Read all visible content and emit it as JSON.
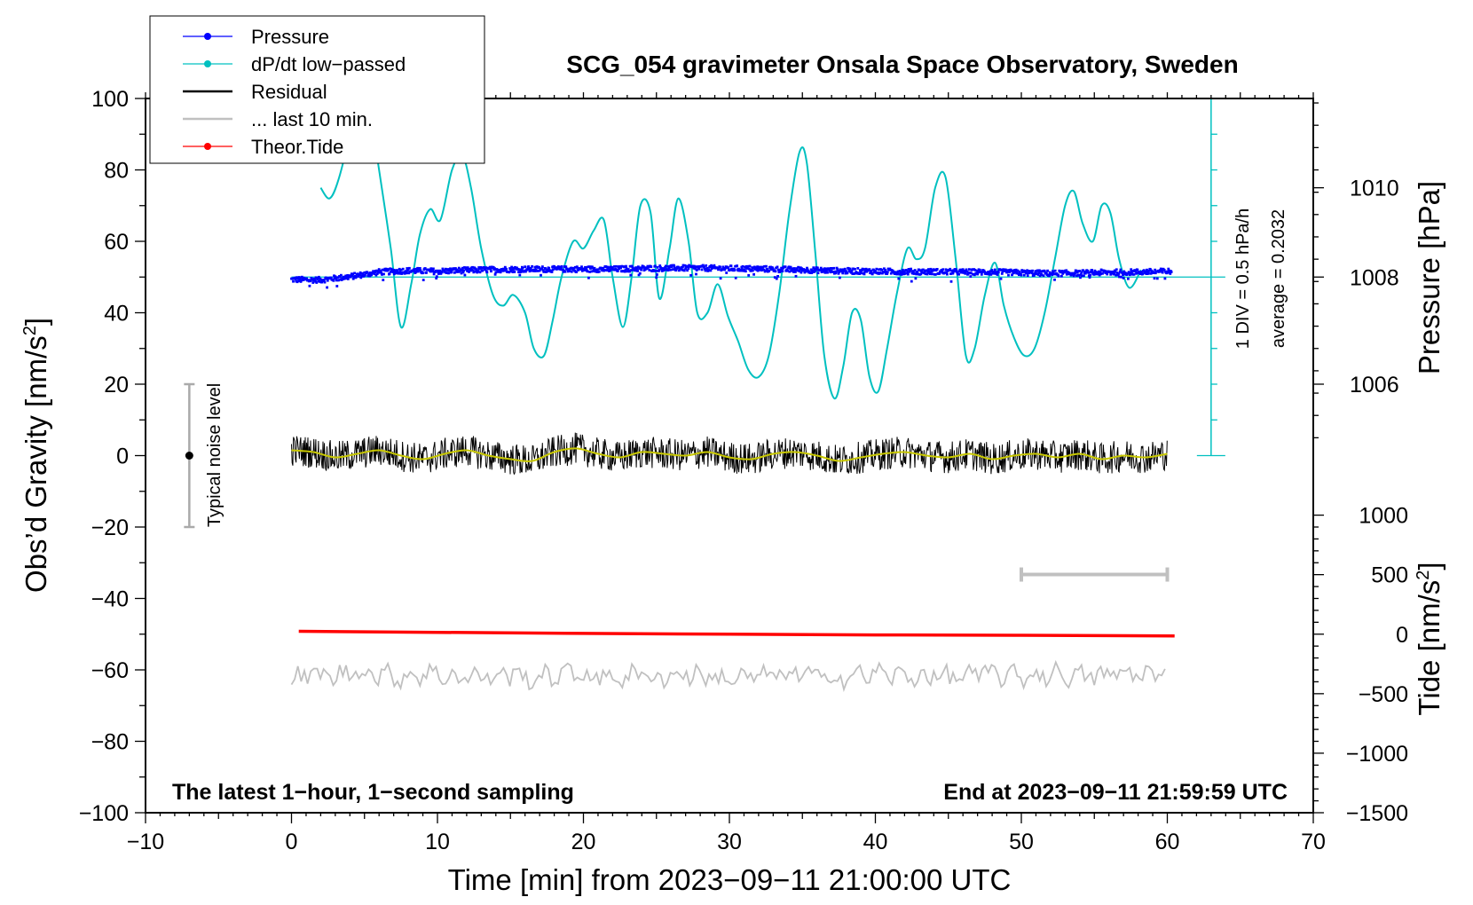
{
  "chart_data": {
    "type": "line",
    "title": "SCG_054 gravimeter Onsala Space Observatory, Sweden",
    "xlabel": "Time [min] from 2023−09−11 21:00:00 UTC",
    "ylabel_left": "Obs’d Gravity [nm/s",
    "ylabel_right_top": "Pressure [hPa]",
    "ylabel_right_bottom": "Tide [nm/s",
    "unit_sup": "2",
    "unit_close": "]",
    "xlim": [
      -10,
      70
    ],
    "ylim": [
      -100,
      100
    ],
    "x_ticks": [
      -10,
      0,
      10,
      20,
      30,
      40,
      50,
      60,
      70
    ],
    "x_tick_labels": [
      "−10",
      "0",
      "10",
      "20",
      "30",
      "40",
      "50",
      "60",
      "70"
    ],
    "y_ticks": [
      -100,
      -80,
      -60,
      -40,
      -20,
      0,
      20,
      40,
      60,
      80,
      100
    ],
    "y_tick_labels": [
      "−100",
      "−80",
      "−60",
      "−40",
      "−20",
      "0",
      "20",
      "40",
      "60",
      "80",
      "100"
    ],
    "pressure_axis": {
      "ticks": [
        1006,
        1008,
        1010
      ],
      "tick_labels": [
        "1006",
        "1008",
        "1010"
      ],
      "gravity_equiv": [
        20,
        50,
        75
      ]
    },
    "tide_axis": {
      "ticks": [
        -1500,
        -1000,
        -500,
        0,
        500,
        1000
      ],
      "tick_labels": [
        "−1500",
        "−1000",
        "−500",
        "0",
        "500",
        "1000"
      ],
      "gravity_equiv": [
        -100,
        -83.33,
        -66.67,
        -50,
        -33.33,
        -16.67
      ]
    },
    "legend": [
      {
        "label": "Pressure",
        "color": "#0000ff",
        "marker": true
      },
      {
        "label": "dP/dt low−passed",
        "color": "#00c0c0",
        "marker": true
      },
      {
        "label": "Residual",
        "color": "#000000",
        "marker": false
      },
      {
        "label": "... last 10 min.",
        "color": "#c0c0c0",
        "marker": false
      },
      {
        "label": "Theor.Tide",
        "color": "#ff0000",
        "marker": true
      }
    ],
    "series": [
      {
        "name": "dP/dt low-passed",
        "color": "#00c0c0",
        "x": [
          2,
          2.6,
          3.2,
          4,
          4.6,
          5.3,
          6,
          6.8,
          7.5,
          8.2,
          8.8,
          9.5,
          10.2,
          11,
          11.7,
          12.3,
          13,
          13.8,
          14.5,
          15.2,
          16,
          16.6,
          17.3,
          17.9,
          18.5,
          19.3,
          20,
          20.7,
          21.4,
          22,
          22.7,
          23.3,
          23.9,
          24.6,
          25.2,
          25.9,
          26.5,
          27.2,
          27.8,
          28.5,
          29.2,
          29.9,
          30.6,
          31.3,
          32,
          32.7,
          33.4,
          34.1,
          34.8,
          35.3,
          35.9,
          36.5,
          37.2,
          37.8,
          38.4,
          39,
          39.6,
          40.2,
          40.8,
          41.5,
          42.2,
          42.8,
          43.4,
          44.1,
          44.8,
          45.5,
          46.2,
          46.8,
          47.5,
          48.2,
          48.8,
          49.5,
          50.2,
          50.9,
          51.6,
          52.3,
          53,
          53.6,
          54.2,
          54.9,
          55.5,
          56.1,
          56.7,
          57.4,
          58.2
        ],
        "y": [
          75,
          72,
          77,
          90,
          102,
          98,
          80,
          58,
          36,
          48,
          62,
          69,
          66,
          80,
          84,
          75,
          58,
          45,
          42,
          45,
          40,
          30,
          28,
          38,
          50,
          60,
          58,
          63,
          66,
          50,
          36,
          50,
          70,
          68,
          44,
          58,
          72,
          60,
          40,
          40,
          48,
          39,
          32,
          24,
          22,
          28,
          45,
          68,
          85,
          82,
          56,
          28,
          16,
          25,
          40,
          38,
          22,
          18,
          30,
          46,
          58,
          55,
          58,
          75,
          78,
          55,
          28,
          30,
          45,
          54,
          42,
          33,
          28,
          30,
          40,
          55,
          70,
          74,
          65,
          60,
          70,
          68,
          55,
          47,
          52
        ]
      },
      {
        "name": "Pressure",
        "color": "#0000ff",
        "x": [
          0,
          2,
          4,
          6,
          8,
          10,
          12,
          14,
          16,
          18,
          20,
          22,
          24,
          26,
          28,
          30,
          32,
          34,
          36,
          38,
          40,
          42,
          44,
          46,
          48,
          50,
          52,
          54,
          56,
          58,
          60.3
        ],
        "y": [
          49.3,
          49.2,
          50.1,
          51.4,
          51.8,
          51.6,
          51.9,
          52.1,
          52.2,
          52.2,
          52.2,
          52.2,
          52.4,
          52.5,
          52.5,
          52.4,
          52.3,
          52.1,
          51.9,
          51.7,
          51.6,
          51.5,
          51.5,
          51.4,
          51.4,
          51.2,
          51,
          51.1,
          51.3,
          51.4,
          51.6
        ]
      },
      {
        "name": "Residual",
        "color": "#000000",
        "x": [
          0,
          1.5,
          3,
          4.5,
          6,
          7.5,
          9,
          10.5,
          12,
          13.5,
          15,
          16.5,
          18,
          19.5,
          21,
          22.5,
          24,
          25.5,
          27,
          28.5,
          30,
          31.5,
          33,
          34.5,
          36,
          37.5,
          39,
          40.5,
          42,
          43.5,
          45,
          46.5,
          48,
          49.5,
          51,
          52.5,
          54,
          55.5,
          57,
          58.5,
          60
        ],
        "y": [
          1.5,
          1,
          -0.5,
          0.5,
          1.5,
          0,
          -1,
          0.5,
          1.5,
          0,
          -1,
          -1.5,
          1,
          2,
          0.5,
          -0.5,
          1,
          0.5,
          0,
          1,
          -0.5,
          -1,
          0.5,
          1,
          0,
          -1.5,
          -0.5,
          0.5,
          1,
          0,
          -0.5,
          0.5,
          -1,
          0,
          0.5,
          -0.5,
          0.5,
          -1,
          0,
          -0.5,
          0.5
        ]
      },
      {
        "name": "Residual (smoothed)",
        "color": "#c8c800",
        "x": [
          0,
          1.5,
          3,
          4.5,
          6,
          7.5,
          9,
          10.5,
          12,
          13.5,
          15,
          16.5,
          18,
          19.5,
          21,
          22.5,
          24,
          25.5,
          27,
          28.5,
          30,
          31.5,
          33,
          34.5,
          36,
          37.5,
          39,
          40.5,
          42,
          43.5,
          45,
          46.5,
          48,
          49.5,
          51,
          52.5,
          54,
          55.5,
          57,
          58.5,
          60
        ],
        "y": [
          1.5,
          1,
          -0.5,
          0.5,
          1.5,
          0,
          -1,
          0.5,
          1.5,
          0,
          -1,
          -1.5,
          1,
          2,
          0.5,
          -0.5,
          1,
          0.5,
          0,
          1,
          -0.5,
          -1,
          0.5,
          1,
          0,
          -1.5,
          -0.5,
          0.5,
          1,
          0,
          -0.5,
          0.5,
          -1,
          0,
          0.5,
          -0.5,
          0.5,
          -1,
          0,
          -0.5,
          0.5
        ]
      },
      {
        "name": "... last 10 min.",
        "color": "#c0c0c0",
        "x": [
          0,
          1.5,
          3,
          4.5,
          6,
          7.5,
          9,
          10.5,
          12,
          13.5,
          15,
          16.5,
          18,
          19.5,
          21,
          22.5,
          24,
          25.5,
          27,
          28.5,
          30,
          31.5,
          33,
          34.5,
          36,
          37.5,
          39,
          40.5,
          42,
          43.5,
          45,
          46.5,
          48,
          49.5,
          51,
          52.5,
          54,
          55.5,
          57,
          58.5,
          60
        ],
        "y": [
          -63,
          -61,
          -62,
          -60,
          -61.5,
          -62,
          -61,
          -61.5,
          -62,
          -62,
          -61,
          -62.5,
          -61.5,
          -61,
          -62,
          -62,
          -61.5,
          -62,
          -61,
          -62,
          -62.5,
          -62,
          -61.5,
          -61,
          -62,
          -62,
          -61.5,
          -61,
          -62,
          -61.5,
          -62,
          -61.5,
          -61,
          -62,
          -61.5,
          -61,
          -62,
          -61.5,
          -61,
          -61,
          -62
        ]
      },
      {
        "name": "Theor.Tide",
        "color": "#ff0000",
        "x": [
          0.5,
          10,
          20,
          30,
          40,
          50,
          60.5
        ],
        "y": [
          -49.2,
          -49.5,
          -49.8,
          -50,
          -50.2,
          -50.3,
          -50.5
        ]
      }
    ],
    "annotations": {
      "noise_label": "Typical noise level",
      "noise_range": [
        -20,
        20
      ],
      "noise_x": -7,
      "scale_label": "1 DIV = 0.5 hPa/h",
      "average_label": "average = 0.2032",
      "scale_axis_x": 63,
      "last10_bar_x": [
        50,
        60
      ],
      "last10_bar_y": -33.3,
      "footer_left": "The latest 1−hour, 1−second sampling",
      "footer_right": "End at 2023−09−11 21:59:59 UTC"
    }
  }
}
